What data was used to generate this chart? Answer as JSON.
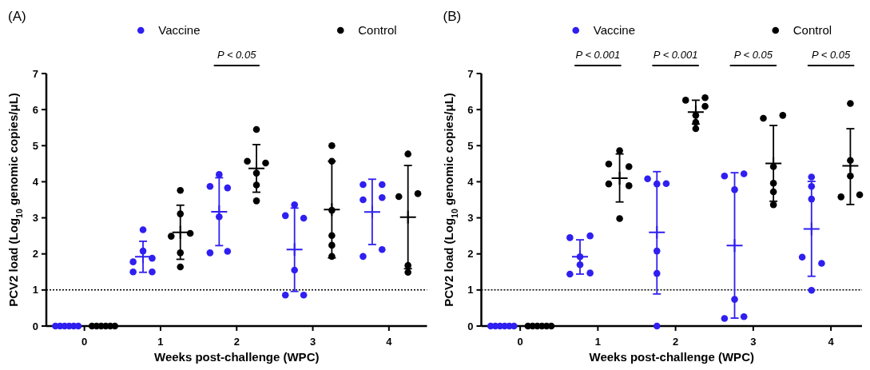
{
  "chart_data": [
    {
      "type": "scatter",
      "title": "(A)",
      "xlabel": "Weeks post-challenge (WPC)",
      "ylabel": "PCV2 load (Log$_{10}$ genomic copies/μL)",
      "xlim": [
        -0.5,
        4.5
      ],
      "xticks": [
        0,
        1,
        2,
        3,
        4
      ],
      "ylim": [
        0,
        7
      ],
      "yticks": [
        0,
        1,
        2,
        3,
        4,
        5,
        6,
        7
      ],
      "legend": "top",
      "ref_lines": [
        {
          "axis": "y",
          "value": 1,
          "line_style": "dotted",
          "color": "#000000"
        }
      ],
      "annotations": [
        "P < 0.05"
      ],
      "series": [
        {
          "name": "Vaccine",
          "marker": "circle",
          "color": "#2f1ff0",
          "x": [
            -0.38,
            -0.32,
            -0.26,
            -0.2,
            -0.14,
            -0.08,
            0.77,
            0.77,
            0.64,
            0.89,
            0.64,
            0.89,
            1.77,
            1.65,
            1.88,
            1.77,
            1.65,
            1.88,
            2.76,
            2.64,
            2.88,
            2.76,
            2.64,
            2.88,
            3.66,
            3.91,
            3.66,
            3.91,
            3.66,
            3.91
          ],
          "values": [
            0,
            0,
            0,
            0,
            0,
            0,
            2.67,
            2.08,
            1.78,
            1.88,
            1.5,
            1.5,
            4.2,
            3.87,
            3.83,
            3.03,
            2.03,
            2.07,
            3.36,
            3.06,
            2.99,
            1.55,
            0.86,
            0.86,
            3.92,
            3.92,
            3.5,
            3.56,
            1.93,
            2.12
          ]
        },
        {
          "name": "Control",
          "marker": "circle",
          "color": "#000000",
          "x": [
            0.1,
            0.16,
            0.22,
            0.28,
            0.34,
            0.4,
            1.26,
            1.26,
            1.14,
            1.39,
            1.26,
            1.26,
            2.26,
            2.14,
            2.38,
            2.26,
            2.26,
            2.26,
            3.25,
            3.25,
            3.25,
            3.25,
            3.25,
            3.25,
            4.25,
            4.13,
            4.38,
            4.25,
            4.25
          ],
          "values": [
            0,
            0,
            0,
            0,
            0,
            0,
            3.76,
            3.11,
            2.49,
            2.57,
            2.03,
            1.64,
            5.45,
            4.57,
            4.52,
            4.24,
            3.91,
            3.47,
            5.0,
            4.57,
            3.21,
            2.51,
            2.24,
            1.93,
            4.77,
            3.59,
            3.67,
            1.68,
            1.49
          ]
        },
        {
          "color": "#2f1ff0",
          "x": [
            0.77,
            1.77,
            2.76,
            3.78
          ],
          "values": [
            1.92,
            3.17,
            2.12,
            3.16
          ],
          "errors": [
            [
              1.49,
              2.35
            ],
            [
              2.23,
              4.11
            ],
            [
              0.96,
              3.27
            ],
            [
              2.26,
              4.07
            ]
          ]
        },
        {
          "color": "#000000",
          "x": [
            1.26,
            2.26,
            3.25,
            4.25
          ],
          "values": [
            2.6,
            4.37,
            3.23,
            3.02
          ],
          "errors": [
            [
              1.85,
              3.35
            ],
            [
              3.71,
              5.03
            ],
            [
              1.89,
              4.57
            ],
            [
              1.59,
              4.45
            ]
          ]
        }
      ]
    },
    {
      "type": "scatter",
      "title": "(B)",
      "xlabel": "Weeks post-challenge (WPC)",
      "ylabel": "PCV2 load (Log$_{10}$ genomic copies/μL)",
      "xlim": [
        -0.5,
        4.4
      ],
      "xticks": [
        0,
        1,
        2,
        3,
        4
      ],
      "ylim": [
        0,
        7
      ],
      "yticks": [
        0,
        1,
        2,
        3,
        4,
        5,
        6,
        7
      ],
      "legend": "top",
      "ref_lines": [
        {
          "axis": "y",
          "value": 1,
          "line_style": "dotted",
          "color": "#000000"
        }
      ],
      "annotations": [
        "P < 0.001",
        "P < 0.001",
        "P < 0.05",
        "P < 0.05"
      ],
      "series": [
        {
          "name": "Vaccine",
          "marker": "circle",
          "color": "#2f1ff0",
          "x": [
            -0.38,
            -0.32,
            -0.26,
            -0.2,
            -0.14,
            -0.08,
            0.64,
            0.9,
            0.77,
            0.77,
            0.64,
            0.9,
            1.64,
            1.76,
            1.88,
            1.76,
            1.76,
            1.76,
            2.63,
            2.88,
            2.76,
            2.76,
            2.63,
            2.88,
            3.75,
            3.75,
            3.75,
            3.63,
            3.88,
            3.75
          ],
          "values": [
            0,
            0,
            0,
            0,
            0,
            0,
            2.45,
            2.5,
            1.92,
            1.7,
            1.44,
            1.47,
            4.08,
            3.94,
            3.95,
            2.08,
            1.46,
            0,
            4.16,
            4.22,
            3.78,
            0.74,
            0.21,
            0.26,
            4.13,
            3.87,
            3.52,
            1.91,
            1.74,
            0.99
          ]
        },
        {
          "name": "Control",
          "marker": "circle",
          "color": "#000000",
          "x": [
            0.1,
            0.16,
            0.22,
            0.28,
            0.34,
            0.4,
            1.28,
            1.14,
            1.4,
            1.14,
            1.4,
            1.28,
            2.13,
            2.38,
            2.38,
            2.26,
            2.26,
            2.26,
            3.13,
            3.38,
            3.26,
            3.26,
            3.26,
            3.26,
            4.25,
            4.25,
            4.25,
            4.13,
            4.37
          ],
          "values": [
            0,
            0,
            0,
            0,
            0,
            0,
            4.86,
            4.49,
            4.42,
            3.94,
            3.89,
            2.98,
            6.26,
            6.33,
            6.09,
            5.84,
            5.65,
            5.47,
            5.76,
            5.84,
            4.42,
            3.96,
            3.72,
            3.36,
            6.17,
            4.59,
            4.16,
            3.58,
            3.64
          ]
        },
        {
          "color": "#2f1ff0",
          "x": [
            0.77,
            1.76,
            2.76,
            3.75
          ],
          "values": [
            1.92,
            2.6,
            2.23,
            2.69
          ],
          "errors": [
            [
              1.44,
              2.39
            ],
            [
              0.89,
              4.28
            ],
            [
              0.22,
              4.25
            ],
            [
              1.38,
              4.01
            ]
          ]
        },
        {
          "color": "#000000",
          "x": [
            1.28,
            2.26,
            3.26,
            4.25
          ],
          "values": [
            4.1,
            5.93,
            4.51,
            4.44
          ],
          "errors": [
            [
              3.44,
              4.77
            ],
            [
              5.6,
              6.26
            ],
            [
              3.46,
              5.56
            ],
            [
              3.37,
              5.47
            ]
          ]
        }
      ]
    }
  ]
}
